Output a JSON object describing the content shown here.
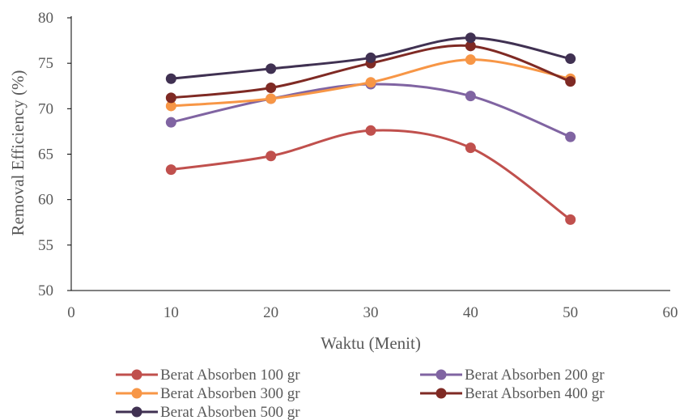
{
  "chart_data": {
    "type": "line",
    "smooth": true,
    "xlabel": "Waktu (Menit)",
    "ylabel": "Removal Efficiency  (%)",
    "xlim": [
      0,
      60
    ],
    "ylim": [
      50,
      80
    ],
    "x_ticks": [
      "0",
      "10",
      "20",
      "30",
      "40",
      "50",
      "60"
    ],
    "y_ticks": [
      "50",
      "55",
      "60",
      "65",
      "70",
      "75",
      "80"
    ],
    "grid": false,
    "legend_position": "bottom",
    "x": [
      10,
      20,
      30,
      40,
      50
    ],
    "series": [
      {
        "name": "Berat Absorben 100 gr",
        "color": "#c0504d",
        "values": [
          63.3,
          64.8,
          67.6,
          65.7,
          57.8
        ]
      },
      {
        "name": "Berat Absorben 200 gr",
        "color": "#8064a2",
        "values": [
          68.5,
          71.1,
          72.7,
          71.4,
          66.9
        ]
      },
      {
        "name": "Berat Absorben 300 gr",
        "color": "#f79646",
        "values": [
          70.3,
          71.1,
          72.9,
          75.4,
          73.3
        ]
      },
      {
        "name": "Berat Absorben 400 gr",
        "color": "#7f2a24",
        "values": [
          71.2,
          72.3,
          75.0,
          76.9,
          73.0
        ]
      },
      {
        "name": "Berat Absorben 500 gr",
        "color": "#403152",
        "values": [
          73.3,
          74.4,
          75.6,
          77.8,
          75.5
        ]
      }
    ]
  }
}
